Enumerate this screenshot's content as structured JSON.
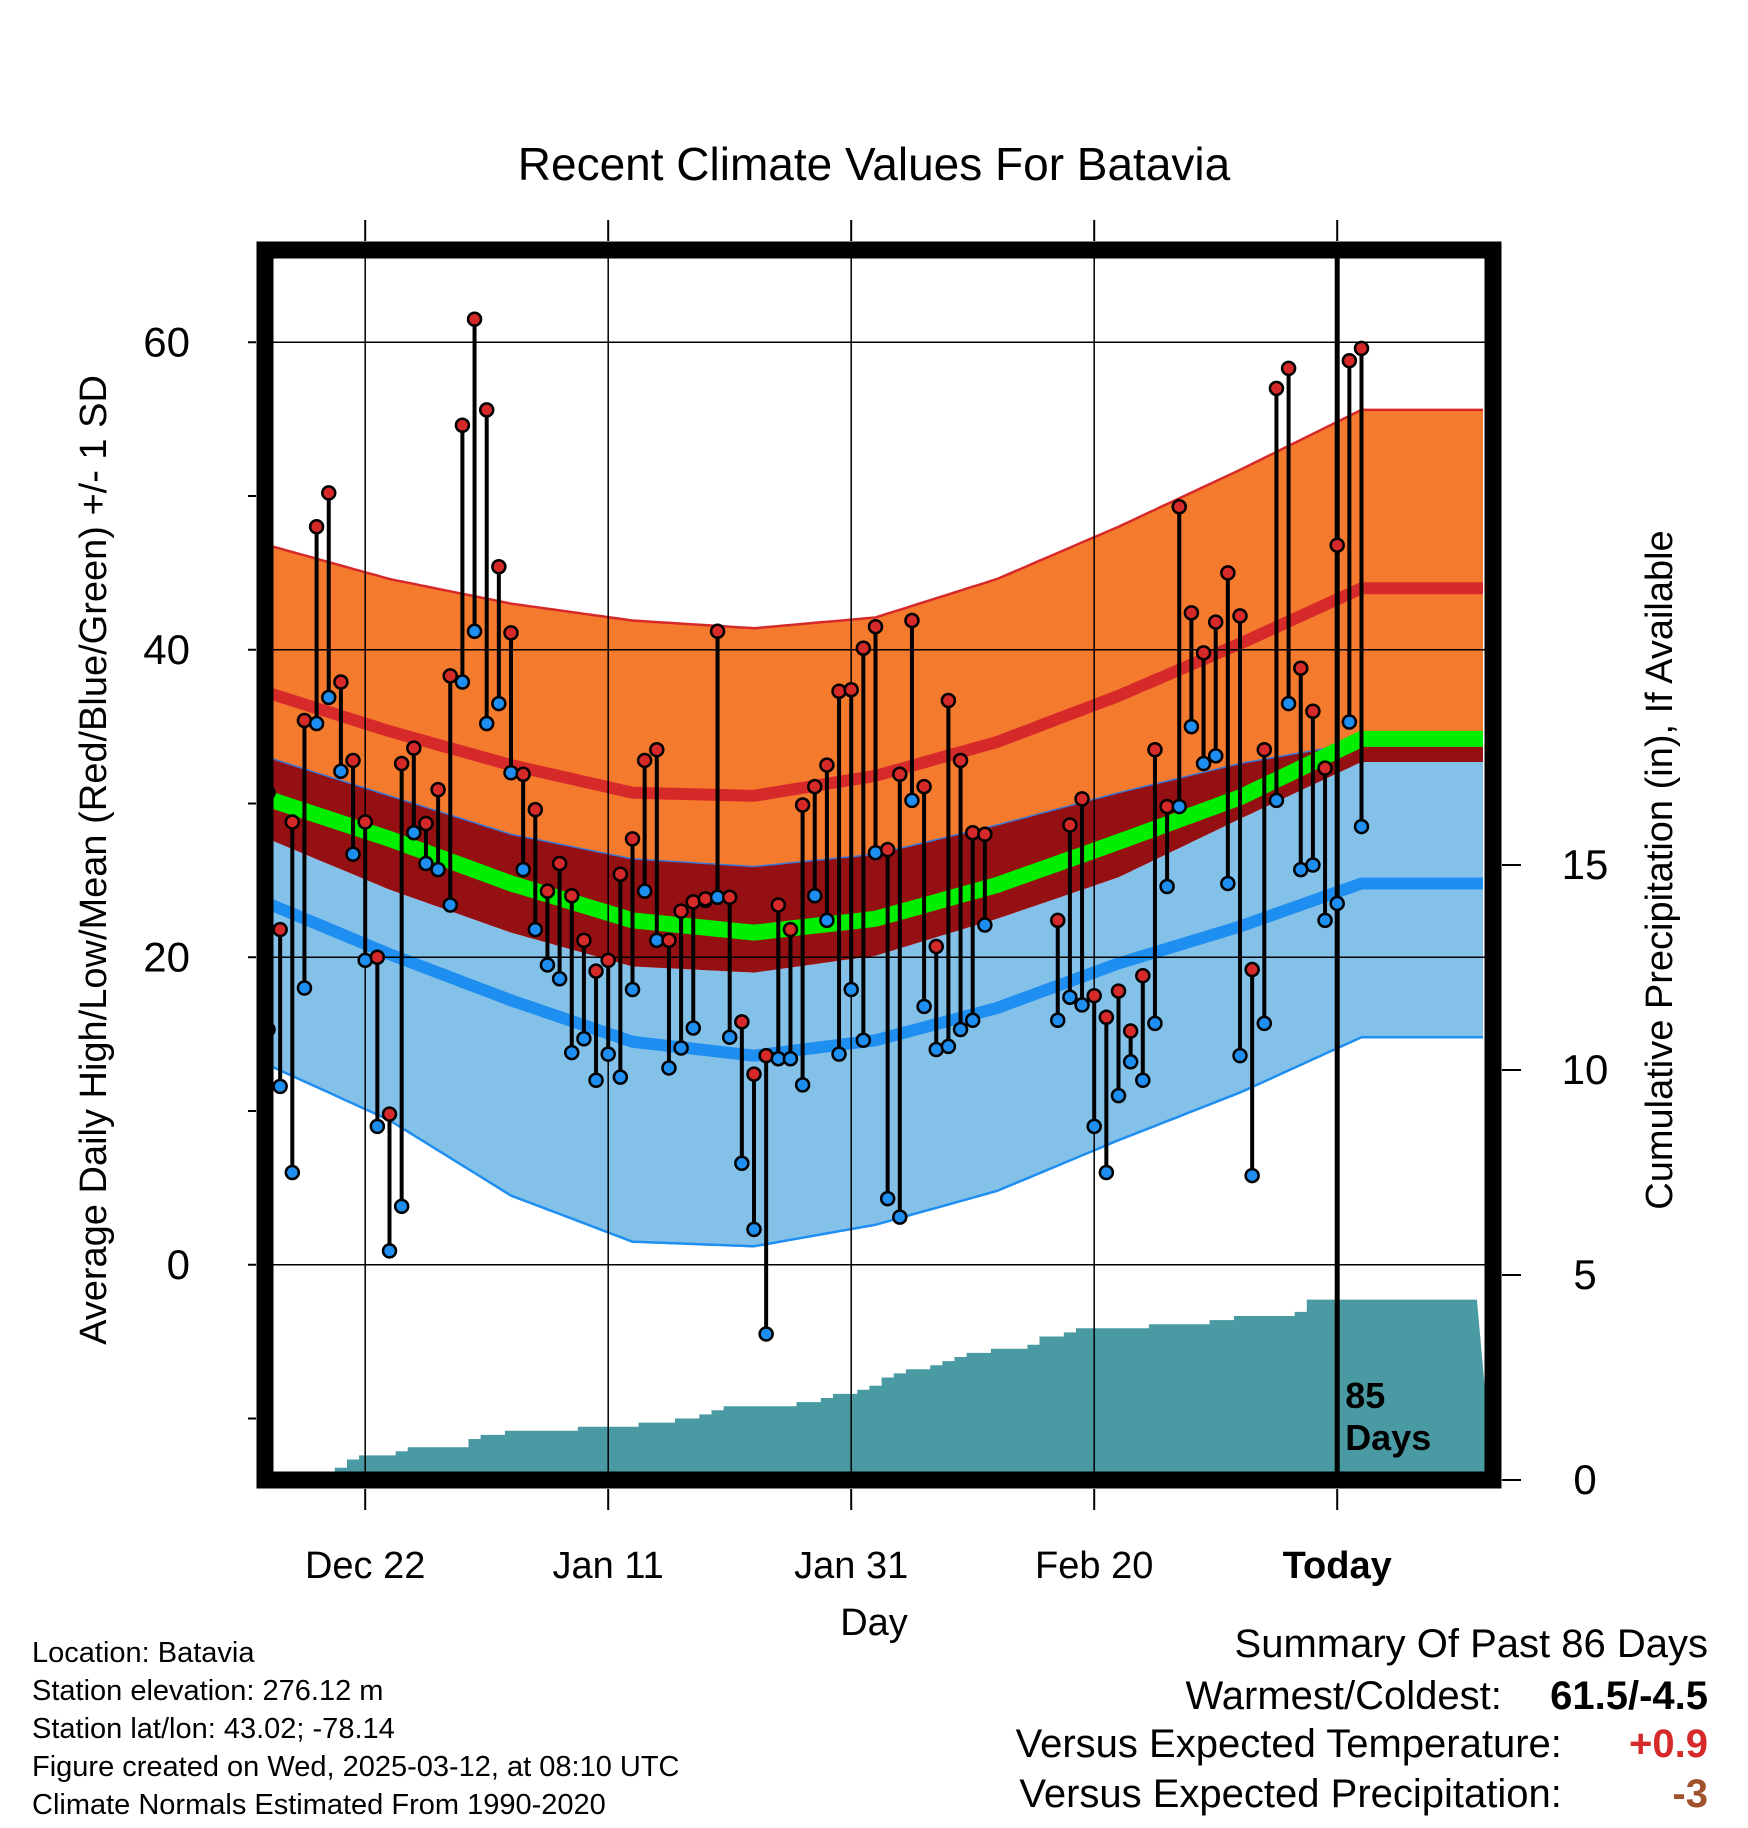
{
  "chart_data": {
    "type": "line",
    "title": "Recent Climate Values For Batavia",
    "xlabel": "Day",
    "ylabel": "Average Daily High/Low/Mean (Red/Blue/Green) +/- 1 SD",
    "y2label": "Cumulative Precipitation (in), If Available",
    "ylim": [
      -14,
      66
    ],
    "y_ticks": [
      "0",
      "20",
      "40",
      "60"
    ],
    "y2lim": [
      0,
      30
    ],
    "y2_ticks": [
      "0",
      "5",
      "10",
      "15"
    ],
    "x_tick_labels": [
      "Dec 22",
      "Jan 11",
      "Jan 31",
      "Feb 20",
      "Today"
    ],
    "today_label": "85\nDays",
    "legend": "none",
    "grid": true,
    "colors": {
      "high_band": "#f47a2e",
      "high_mean": "#d62a2a",
      "mean_band": "#941012",
      "mean_line": "#00ee00",
      "low_band": "#84c1e8",
      "low_mean": "#1e8ef0",
      "precip": "#4a9aa4",
      "high_dot": "#d62a2a",
      "low_dot": "#1e8ef0"
    },
    "normals": {
      "day_index": [
        0,
        10,
        20,
        30,
        40,
        50,
        60,
        70,
        80,
        90,
        100
      ],
      "high_plus_sd": [
        46.8,
        44.6,
        43.0,
        41.9,
        41.4,
        42.1,
        44.6,
        48.0,
        51.7,
        55.6,
        55.6
      ],
      "high_normal": [
        37.2,
        34.7,
        32.5,
        30.7,
        30.5,
        31.8,
        34.0,
        37.0,
        40.4,
        44.0,
        44.0
      ],
      "high_minus_sd": [
        33.0,
        30.5,
        28.0,
        26.4,
        25.9,
        26.7,
        28.6,
        30.7,
        32.6,
        34.0,
        34.0
      ],
      "mean_normal": [
        30.3,
        27.7,
        24.8,
        22.4,
        21.6,
        22.5,
        24.7,
        27.5,
        30.4,
        34.2,
        34.2
      ],
      "low_plus_sd": [
        27.7,
        24.4,
        21.6,
        19.4,
        19.0,
        20.1,
        22.5,
        25.2,
        29.0,
        32.7,
        32.7
      ],
      "low_normal": [
        23.5,
        20.2,
        17.2,
        14.5,
        13.6,
        14.6,
        16.7,
        19.6,
        22.0,
        24.8,
        24.8
      ],
      "low_minus_sd": [
        13.0,
        9.4,
        4.5,
        1.5,
        1.2,
        2.6,
        4.8,
        8.1,
        11.2,
        14.8,
        14.8
      ]
    },
    "series": [
      {
        "name": "High",
        "values": [
          30.7,
          21.8,
          28.8,
          35.4,
          48.0,
          50.2,
          37.9,
          32.8,
          28.8,
          20.0,
          9.8,
          32.6,
          33.6,
          28.7,
          30.9,
          38.3,
          54.6,
          61.5,
          55.6,
          45.4,
          41.1,
          31.9,
          29.6,
          24.3,
          26.1,
          24.0,
          21.1,
          19.1,
          19.8,
          25.4,
          27.7,
          32.8,
          33.5,
          21.1,
          23.0,
          23.6,
          23.8,
          41.2,
          23.9,
          15.8,
          12.4,
          13.6,
          23.4,
          21.8,
          29.9,
          31.1,
          32.5,
          37.3,
          37.4,
          40.1,
          41.5,
          27.0,
          31.9,
          41.9,
          31.1,
          20.7,
          36.7,
          32.8,
          28.1,
          28.0,
          null,
          null,
          null,
          null,
          null,
          22.4,
          28.6,
          30.3,
          17.5,
          16.1,
          17.8,
          15.2,
          18.8,
          33.5,
          29.8,
          49.3,
          42.4,
          39.8,
          41.8,
          45.0,
          42.2,
          19.2,
          33.5,
          57.0,
          58.3,
          38.8,
          36.0,
          32.3,
          46.8,
          58.8,
          59.6
        ]
      },
      {
        "name": "Low",
        "values": [
          15.3,
          11.6,
          6.0,
          18.0,
          35.2,
          36.9,
          32.1,
          26.7,
          19.8,
          9.0,
          0.9,
          3.8,
          28.1,
          26.1,
          25.7,
          23.4,
          37.9,
          41.2,
          35.2,
          36.5,
          32.0,
          25.7,
          21.8,
          19.5,
          18.6,
          13.8,
          14.7,
          12.0,
          13.7,
          12.2,
          17.9,
          24.3,
          21.1,
          12.8,
          14.1,
          15.4,
          23.7,
          23.9,
          14.8,
          6.6,
          2.3,
          -4.5,
          13.4,
          13.4,
          11.7,
          24.0,
          22.4,
          13.7,
          17.9,
          14.6,
          26.8,
          4.3,
          3.1,
          30.2,
          16.8,
          14.0,
          14.2,
          15.3,
          15.9,
          22.1,
          null,
          null,
          null,
          null,
          null,
          15.9,
          17.4,
          16.9,
          9.0,
          6.0,
          11.0,
          13.2,
          12.0,
          15.7,
          24.6,
          29.8,
          35.0,
          32.6,
          33.1,
          24.8,
          13.6,
          5.8,
          15.7,
          30.2,
          36.5,
          25.7,
          26.0,
          22.4,
          23.5,
          35.3,
          28.5
        ]
      },
      {
        "name": "Cumulative Precipitation",
        "axis": "right",
        "values": [
          0.0,
          0.0,
          0.0,
          0.0,
          0.0,
          0.2,
          0.3,
          0.5,
          0.6,
          0.6,
          0.6,
          0.7,
          0.8,
          0.8,
          0.8,
          0.8,
          0.8,
          1.0,
          1.1,
          1.1,
          1.2,
          1.2,
          1.2,
          1.2,
          1.2,
          1.2,
          1.3,
          1.3,
          1.3,
          1.3,
          1.3,
          1.4,
          1.4,
          1.4,
          1.5,
          1.5,
          1.6,
          1.7,
          1.8,
          1.8,
          1.8,
          1.8,
          1.8,
          1.8,
          1.9,
          1.9,
          2.0,
          2.1,
          2.1,
          2.2,
          2.3,
          2.5,
          2.6,
          2.7,
          2.7,
          2.8,
          2.9,
          3.0,
          3.1,
          3.1,
          3.2,
          3.2,
          3.2,
          3.3,
          3.5,
          3.5,
          3.6,
          3.7,
          3.7,
          3.7,
          3.7,
          3.7,
          3.7,
          3.8,
          3.8,
          3.8,
          3.8,
          3.8,
          3.9,
          3.9,
          4.0,
          4.0,
          4.0,
          4.0,
          4.0,
          4.1,
          4.4,
          4.4,
          4.4,
          4.4,
          4.4,
          4.4,
          4.4,
          4.4,
          4.4,
          4.4,
          4.4,
          4.4,
          4.4,
          4.4
        ]
      }
    ]
  },
  "station": {
    "location": "Location: Batavia",
    "elevation": "Station elevation: 276.12 m",
    "latlon": "Station lat/lon: 43.02; -78.14",
    "created": "Figure created on Wed, 2025-03-12, at 08:10 UTC",
    "normals_period": "Climate Normals Estimated From 1990-2020"
  },
  "summary": {
    "title": "Summary Of Past 86 Days",
    "warmest_label": "Warmest/Coldest:",
    "warmest_value": "61.5/-4.5",
    "temp_label": "Versus Expected Temperature:",
    "temp_value": "+0.9",
    "temp_color": "#d62a2a",
    "precip_label": "Versus Expected Precipitation:",
    "precip_value": "-3",
    "precip_color": "#a0522d"
  }
}
